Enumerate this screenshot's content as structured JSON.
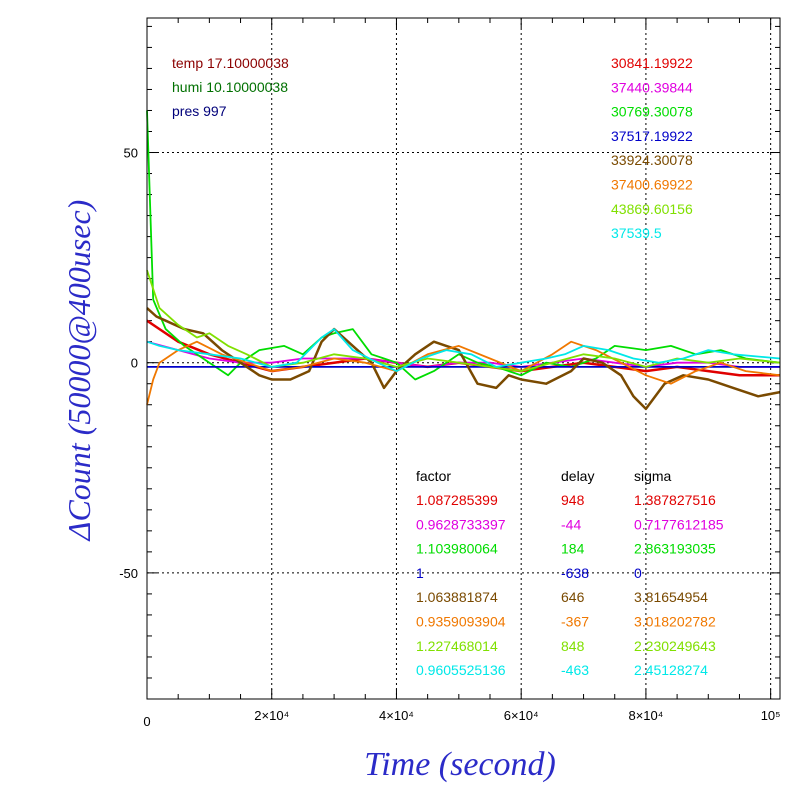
{
  "chart_data": {
    "type": "line",
    "xlabel": "Time (second)",
    "ylabel": "ΔCount (50000@400usec)",
    "xlim": [
      0,
      101500
    ],
    "ylim": [
      -80,
      82
    ],
    "grid": true,
    "x_ticks": [
      {
        "value": 0,
        "label": "0"
      },
      {
        "value": 20000,
        "label": "2×10⁴"
      },
      {
        "value": 40000,
        "label": "4×10⁴"
      },
      {
        "value": 60000,
        "label": "6×10⁴"
      },
      {
        "value": 80000,
        "label": "8×10⁴"
      },
      {
        "value": 100000,
        "label": "10⁵"
      }
    ],
    "y_ticks": [
      {
        "value": -50,
        "label": "-50"
      },
      {
        "value": 0,
        "label": "0"
      },
      {
        "value": 50,
        "label": "50"
      }
    ],
    "env": [
      {
        "text": "temp 17.10000038",
        "color": "#8b0000"
      },
      {
        "text": "humi 10.10000038",
        "color": "#007000"
      },
      {
        "text": "pres 997",
        "color": "#00007a"
      }
    ],
    "table_headers": [
      "factor",
      "delay",
      "sigma"
    ],
    "series": [
      {
        "mean": "30841.19922",
        "factor": "1.087285399",
        "delay": "948",
        "sigma": "1.387827516",
        "color": "#e00000",
        "x": [
          0,
          2000,
          5000,
          10000,
          15000,
          20000,
          25000,
          30000,
          35000,
          40000,
          45000,
          50000,
          55000,
          60000,
          65000,
          70000,
          75000,
          80000,
          85000,
          90000,
          95000,
          101500
        ],
        "y": [
          10,
          8,
          5,
          2,
          0,
          -2,
          -1,
          0,
          1,
          0,
          -1,
          0,
          -1,
          -2,
          -1,
          0,
          -1,
          -2,
          -1,
          -2,
          -3,
          -3
        ]
      },
      {
        "mean": "37440.39844",
        "factor": "0.9628733397",
        "delay": "-44",
        "sigma": "0.7177612185",
        "color": "#e000e0",
        "x": [
          0,
          5000,
          10000,
          15000,
          20000,
          25000,
          30000,
          35000,
          40000,
          45000,
          50000,
          55000,
          60000,
          65000,
          70000,
          75000,
          80000,
          85000,
          90000,
          95000,
          101500
        ],
        "y": [
          5,
          3,
          1,
          0,
          0,
          1,
          1,
          1,
          0,
          -1,
          0,
          0,
          -1,
          0,
          1,
          0,
          -1,
          0,
          0,
          -1,
          -1
        ]
      },
      {
        "mean": "30769.30078",
        "factor": "1.103980064",
        "delay": "184",
        "sigma": "2.863193035",
        "color": "#00dd00",
        "x": [
          0,
          1000,
          3000,
          6000,
          10000,
          13000,
          15000,
          18000,
          22000,
          25000,
          28000,
          30000,
          33000,
          36000,
          40000,
          43000,
          46000,
          50000,
          53000,
          56000,
          60000,
          64000,
          68000,
          72000,
          75000,
          80000,
          84000,
          88000,
          92000,
          96000,
          101500
        ],
        "y": [
          60,
          15,
          8,
          4,
          0,
          -3,
          0,
          3,
          4,
          2,
          6,
          7,
          8,
          2,
          0,
          -4,
          -2,
          2,
          0,
          -1,
          -3,
          0,
          -1,
          1,
          4,
          3,
          4,
          2,
          3,
          1,
          0
        ]
      },
      {
        "mean": "37517.19922",
        "factor": "1",
        "delay": "-638",
        "sigma": "0",
        "color": "#0000c8",
        "x": [
          0,
          5000,
          10000,
          15000,
          20000,
          25000,
          30000,
          35000,
          40000,
          45000,
          50000,
          55000,
          60000,
          65000,
          70000,
          75000,
          80000,
          85000,
          90000,
          95000,
          101500
        ],
        "y": [
          -1,
          -1,
          -1,
          -1,
          -1,
          -1,
          -1,
          -1,
          -1,
          -1,
          -1,
          -1,
          -1,
          -1,
          -1,
          -1,
          -1,
          -1,
          -1,
          -1,
          -1
        ]
      },
      {
        "mean": "33924.30078",
        "factor": "1.063881874",
        "delay": "646",
        "sigma": "3.81654954",
        "color": "#7a4a00",
        "x": [
          0,
          1500,
          3000,
          6000,
          9000,
          12000,
          15000,
          18000,
          20000,
          23000,
          26000,
          28000,
          30000,
          33000,
          36000,
          38000,
          40000,
          43000,
          46000,
          48000,
          50000,
          53000,
          56000,
          58000,
          60000,
          64000,
          68000,
          70000,
          73000,
          76000,
          78000,
          80000,
          83000,
          86000,
          90000,
          94000,
          98000,
          101500
        ],
        "y": [
          13,
          11,
          10,
          8,
          7,
          3,
          0,
          -3,
          -4,
          -4,
          -2,
          5,
          8,
          4,
          0,
          -6,
          -2,
          2,
          5,
          4,
          3,
          -5,
          -6,
          -3,
          -4,
          -5,
          -2,
          1,
          0,
          -3,
          -8,
          -11,
          -5,
          -3,
          -4,
          -6,
          -8,
          -7
        ]
      },
      {
        "mean": "37400.69922",
        "factor": "0.9359093904",
        "delay": "-367",
        "sigma": "3.018202782",
        "color": "#f07800",
        "x": [
          0,
          1000,
          2000,
          5000,
          8000,
          12000,
          16000,
          20000,
          25000,
          30000,
          35000,
          40000,
          45000,
          50000,
          55000,
          60000,
          65000,
          68000,
          72000,
          76000,
          80000,
          84000,
          88000,
          92000,
          96000,
          101500
        ],
        "y": [
          -10,
          -4,
          0,
          3,
          5,
          2,
          0,
          -2,
          -1,
          1,
          0,
          -2,
          2,
          4,
          1,
          -2,
          2,
          5,
          3,
          0,
          -3,
          -5,
          -2,
          0,
          -2,
          -3
        ]
      },
      {
        "mean": "43869.60156",
        "factor": "1.227468014",
        "delay": "848",
        "sigma": "2.230249643",
        "color": "#80e000",
        "x": [
          0,
          2000,
          5000,
          8000,
          10000,
          13000,
          16000,
          20000,
          25000,
          30000,
          35000,
          40000,
          45000,
          50000,
          55000,
          60000,
          65000,
          70000,
          75000,
          80000,
          85000,
          90000,
          95000,
          101500
        ],
        "y": [
          22,
          13,
          9,
          6,
          7,
          4,
          2,
          -1,
          0,
          2,
          1,
          -1,
          1,
          0,
          -1,
          -2,
          0,
          2,
          1,
          -1,
          1,
          0,
          1,
          0
        ]
      },
      {
        "mean": "37539.5",
        "factor": "0.9605525136",
        "delay": "-463",
        "sigma": "2.45128274",
        "color": "#00e8e8",
        "x": [
          0,
          2000,
          5000,
          10000,
          15000,
          20000,
          24000,
          28000,
          30000,
          33000,
          37000,
          40000,
          44000,
          48000,
          52000,
          56000,
          60000,
          64000,
          67000,
          70000,
          74000,
          78000,
          82000,
          86000,
          90000,
          94000,
          101500
        ],
        "y": [
          5,
          4,
          3,
          2,
          1,
          -1,
          0,
          6,
          8,
          3,
          0,
          -2,
          1,
          3,
          2,
          -1,
          0,
          1,
          2,
          4,
          3,
          1,
          0,
          1,
          3,
          2,
          1
        ]
      }
    ]
  }
}
